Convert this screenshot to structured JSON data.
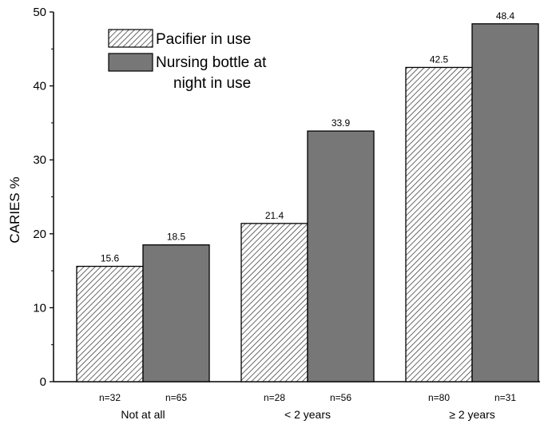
{
  "chart_data": {
    "type": "bar",
    "title": "",
    "xlabel": "",
    "ylabel": "CARIES %",
    "ylim": [
      0,
      50
    ],
    "yticks": [
      "0",
      "10",
      "20",
      "30",
      "40",
      "50"
    ],
    "categories": [
      "Not at all",
      "< 2 years",
      "≥ 2 years"
    ],
    "series": [
      {
        "name": "Pacifier in use",
        "pattern": "hatched",
        "values": [
          15.6,
          21.4,
          42.5
        ],
        "value_labels": [
          "15.6",
          "21.4",
          "42.5"
        ],
        "n_labels": [
          "n=32",
          "n=28",
          "n=80"
        ]
      },
      {
        "name": "Nursing bottle at night in use",
        "legend_lines": [
          "Nursing bottle at",
          "night in use"
        ],
        "pattern": "solid",
        "values": [
          18.5,
          33.9,
          48.4
        ],
        "value_labels": [
          "18.5",
          "33.9",
          "48.4"
        ],
        "n_labels": [
          "n=65",
          "n=56",
          "n=31"
        ]
      }
    ],
    "grid": false,
    "legend_position": "top-left",
    "colors": {
      "solid_fill": "#777777",
      "hatch_fill": "#ffffff",
      "hatch_line": "#444444",
      "axis": "#000000"
    }
  }
}
